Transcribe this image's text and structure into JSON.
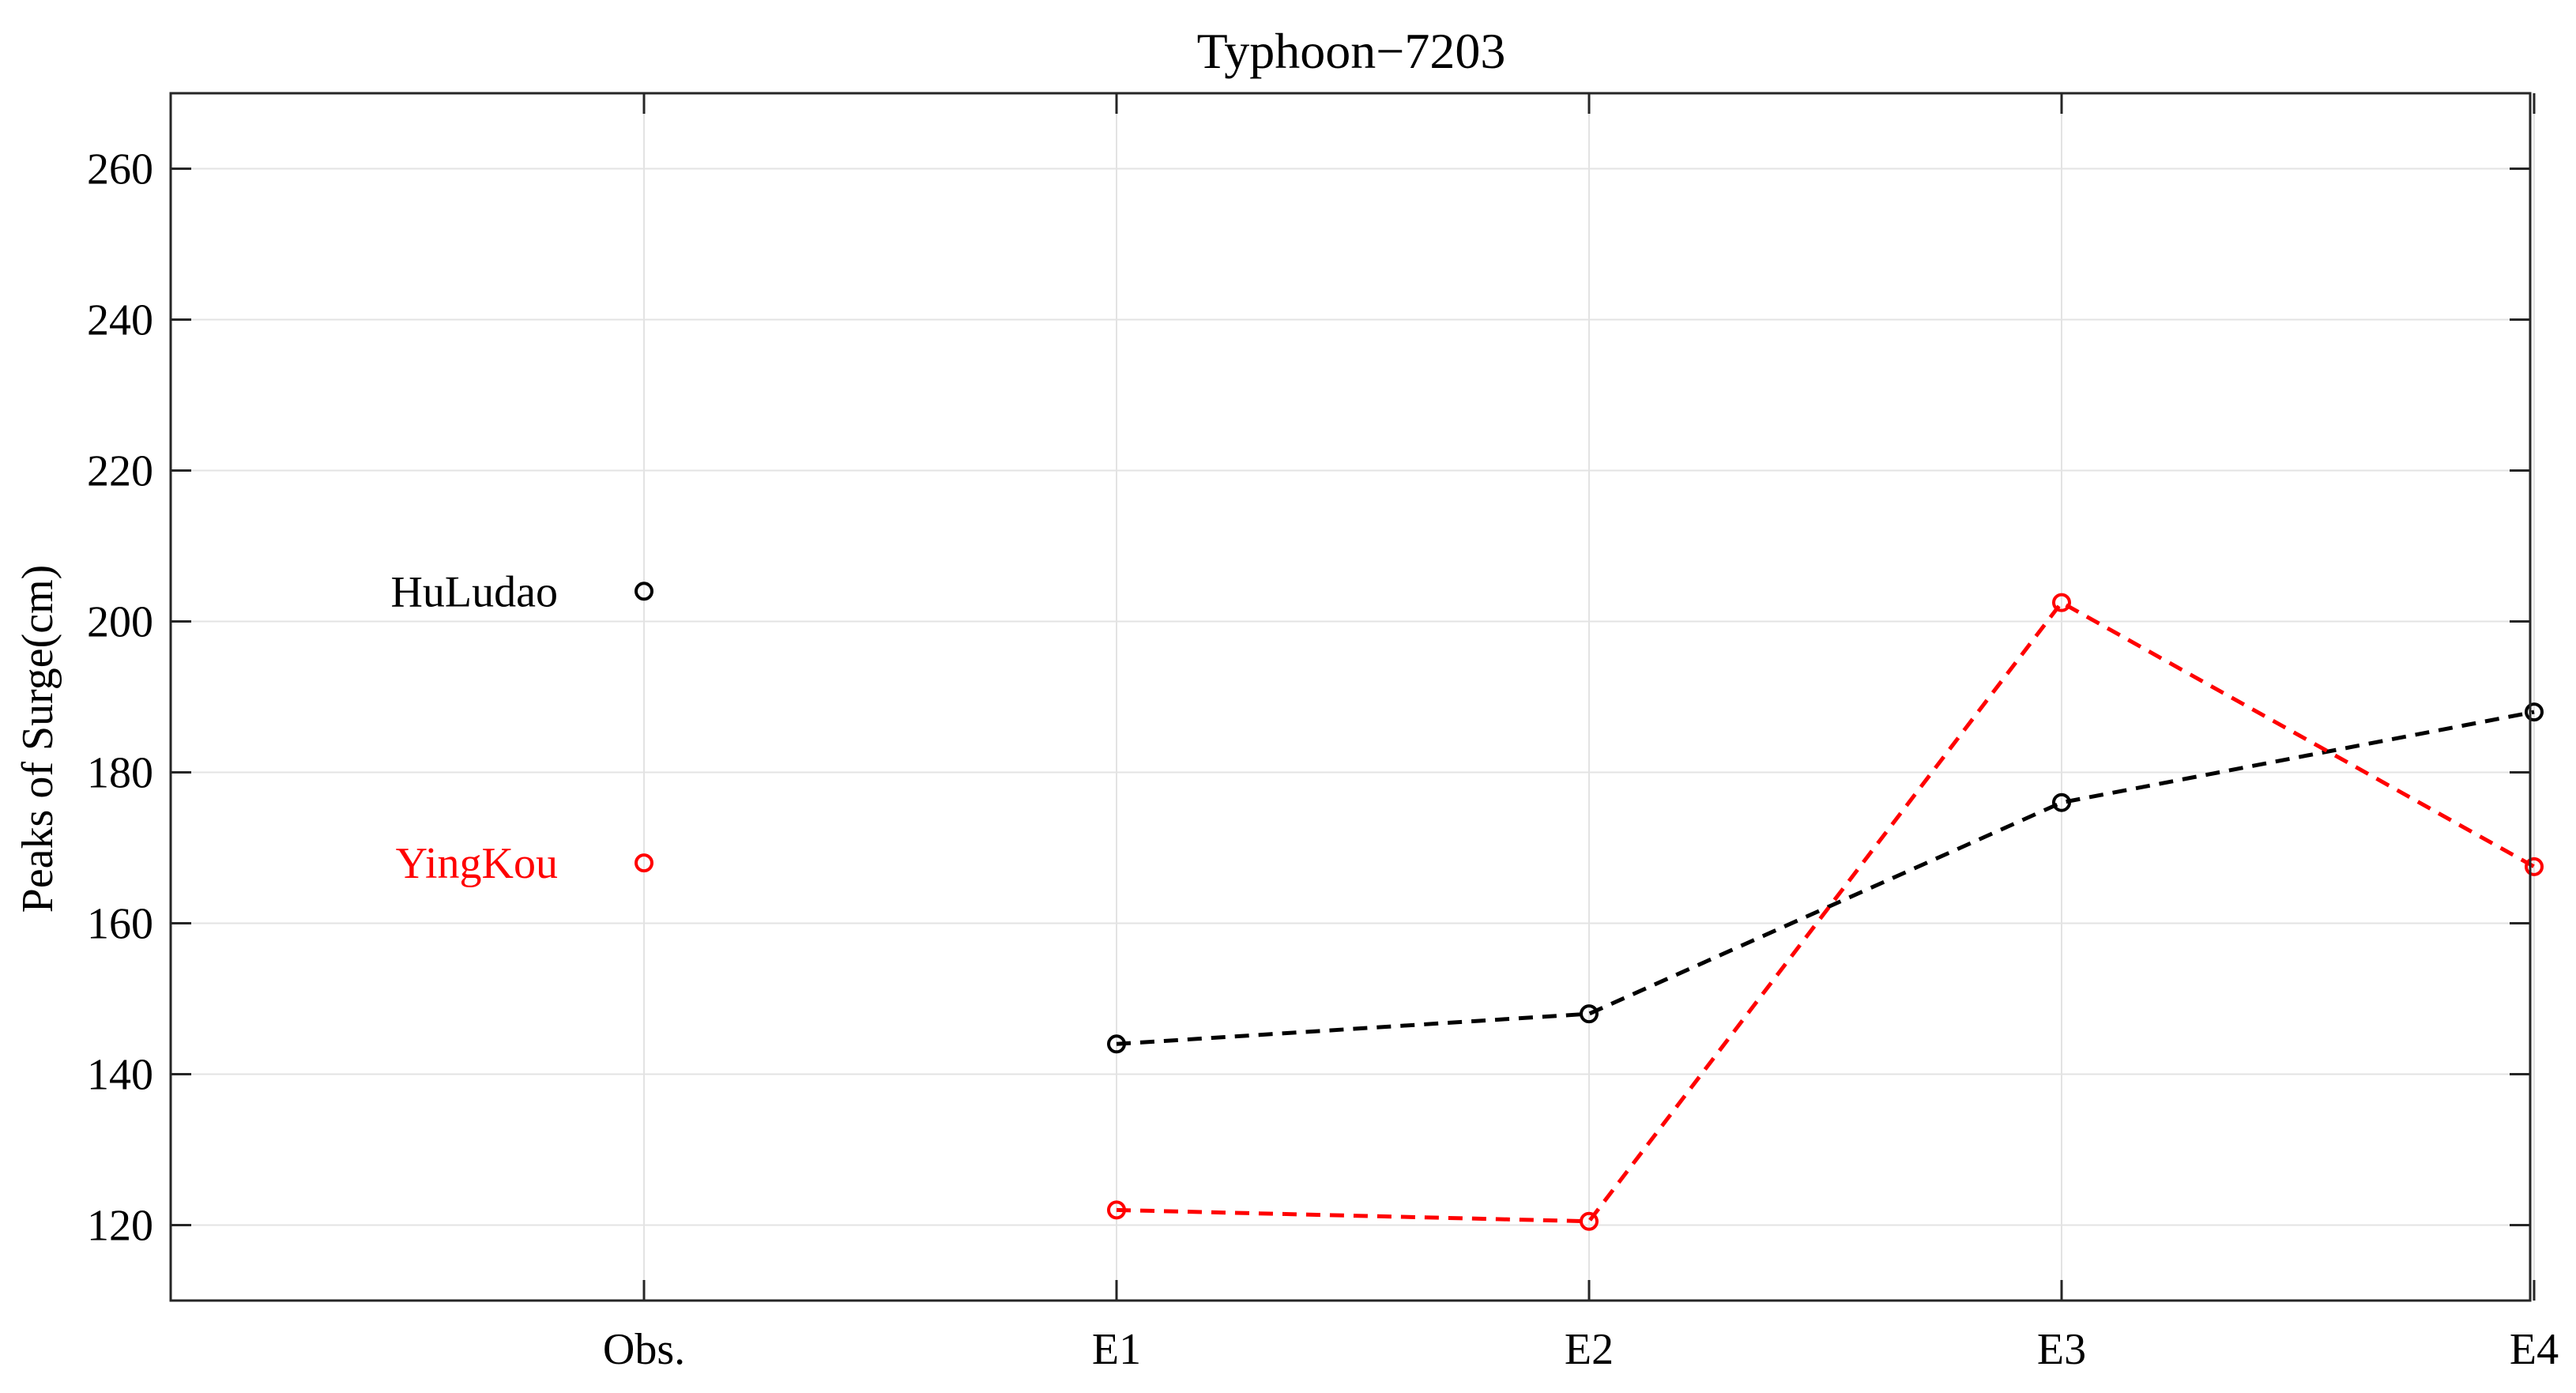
{
  "chart_data": {
    "type": "line",
    "title": "Typhoon−7203",
    "xlabel": "",
    "ylabel": "Peaks of Surge(cm)",
    "categories": [
      "Obs.",
      "E1",
      "E2",
      "E3",
      "E4"
    ],
    "ylim": [
      110,
      270
    ],
    "yticks": [
      120,
      140,
      160,
      180,
      200,
      220,
      240,
      260
    ],
    "grid": true,
    "legend": "inline-left",
    "series": [
      {
        "name": "HuLudao",
        "color": "#000000",
        "obs": 204,
        "values": [
          204,
          144,
          148,
          176,
          188
        ]
      },
      {
        "name": "YingKou",
        "color": "#ff0000",
        "obs": 168,
        "values": [
          168,
          122,
          120.5,
          202.5,
          167.5
        ]
      }
    ]
  }
}
